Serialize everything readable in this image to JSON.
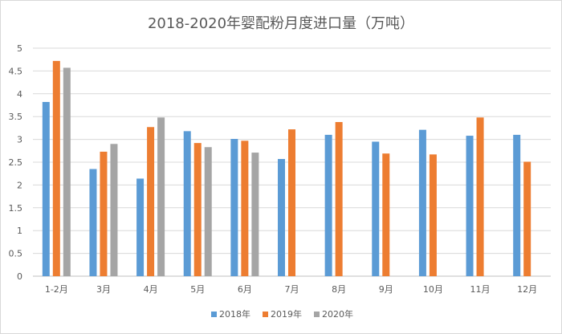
{
  "chart_data": {
    "type": "bar",
    "title": "2018-2020年婴配粉月度进口量（万吨）",
    "categories": [
      "1-2月",
      "3月",
      "4月",
      "5月",
      "6月",
      "7月",
      "8月",
      "9月",
      "10月",
      "11月",
      "12月"
    ],
    "series": [
      {
        "name": "2018年",
        "color": "#5b9bd5",
        "values": [
          3.82,
          2.35,
          2.14,
          3.18,
          3.01,
          2.57,
          3.1,
          2.95,
          3.21,
          3.08,
          3.1
        ]
      },
      {
        "name": "2019年",
        "color": "#ed7d31",
        "values": [
          4.72,
          2.73,
          3.27,
          2.92,
          2.97,
          3.22,
          3.38,
          2.69,
          2.67,
          3.48,
          2.51
        ]
      },
      {
        "name": "2020年",
        "color": "#a5a5a5",
        "values": [
          4.57,
          2.9,
          3.48,
          2.83,
          2.71,
          null,
          null,
          null,
          null,
          null,
          null
        ]
      }
    ],
    "ylim": [
      0,
      5
    ],
    "yticks": [
      "0",
      "0.5",
      "1",
      "1.5",
      "2",
      "2.5",
      "3",
      "3.5",
      "4",
      "4.5",
      "5"
    ],
    "grid": true,
    "legend_position": "bottom"
  }
}
